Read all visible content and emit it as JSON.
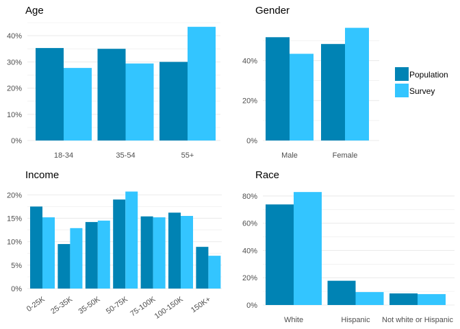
{
  "colors": {
    "population": "#0083B4",
    "survey": "#33C5FF",
    "grid": "#ebebeb"
  },
  "legend": {
    "position": "right",
    "entries": [
      {
        "label": "Population",
        "color": "#0083B4"
      },
      {
        "label": "Survey",
        "color": "#33C5FF"
      }
    ]
  },
  "chart_data": [
    {
      "title": "Age",
      "type": "bar",
      "categories": [
        "18-34",
        "35-54",
        "55+"
      ],
      "series": [
        {
          "name": "Population",
          "values": [
            35.3,
            35.0,
            30.0
          ]
        },
        {
          "name": "Survey",
          "values": [
            27.7,
            29.4,
            43.4
          ]
        }
      ],
      "ylim": [
        0,
        45
      ],
      "yticks": [
        0,
        10,
        20,
        30,
        40
      ],
      "ytick_labels": [
        "0%",
        "10%",
        "20%",
        "30%",
        "40%"
      ],
      "grid": true
    },
    {
      "title": "Gender",
      "type": "bar",
      "categories": [
        "Male",
        "Female"
      ],
      "series": [
        {
          "name": "Population",
          "values": [
            51.7,
            48.3
          ]
        },
        {
          "name": "Survey",
          "values": [
            43.4,
            56.4
          ]
        }
      ],
      "ylim": [
        0,
        59
      ],
      "yticks": [
        0,
        20,
        40
      ],
      "ytick_labels": [
        "0%",
        "20%",
        "40%"
      ],
      "grid": true
    },
    {
      "title": "Income",
      "type": "bar",
      "categories": [
        "0-25K",
        "25-35K",
        "35-50K",
        "50-75K",
        "75-100K",
        "100-150K",
        "150K+"
      ],
      "series": [
        {
          "name": "Population",
          "values": [
            17.5,
            9.5,
            14.2,
            19.0,
            15.4,
            16.2,
            8.9
          ]
        },
        {
          "name": "Survey",
          "values": [
            15.2,
            12.9,
            14.5,
            20.7,
            15.2,
            15.5,
            7.0
          ]
        }
      ],
      "ylim": [
        0,
        21.5
      ],
      "yticks": [
        0,
        5,
        10,
        15,
        20
      ],
      "ytick_labels": [
        "0%",
        "5%",
        "10%",
        "15%",
        "20%"
      ],
      "grid": true
    },
    {
      "title": "Race",
      "type": "bar",
      "categories": [
        "White",
        "Hispanic",
        "Not white or Hispanic"
      ],
      "series": [
        {
          "name": "Population",
          "values": [
            73.8,
            17.8,
            8.5
          ]
        },
        {
          "name": "Survey",
          "values": [
            82.9,
            9.5,
            8.0
          ]
        }
      ],
      "ylim": [
        0,
        86
      ],
      "yticks": [
        0,
        20,
        40,
        60,
        80
      ],
      "ytick_labels": [
        "0%",
        "20%",
        "40%",
        "60%",
        "80%"
      ],
      "grid": true
    }
  ]
}
